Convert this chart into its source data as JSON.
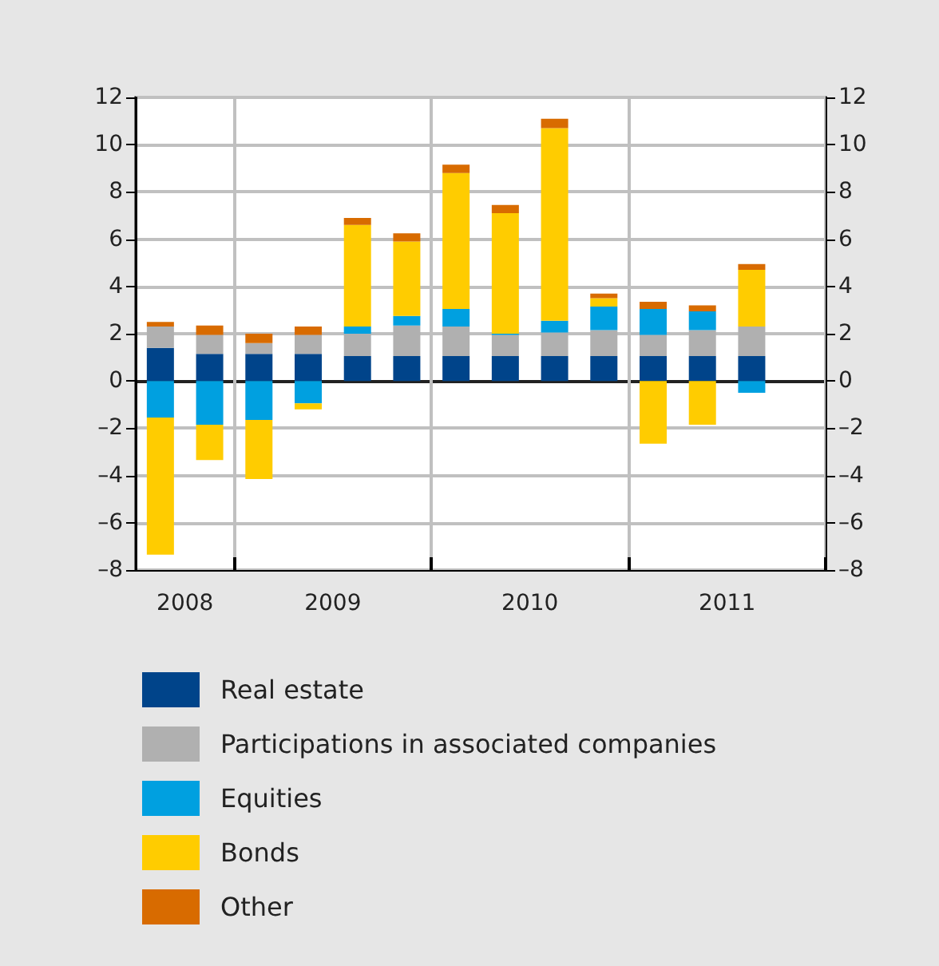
{
  "chart_data": {
    "type": "bar",
    "stacked": true,
    "categories": [
      "2008",
      null,
      null,
      "2009",
      null,
      null,
      null,
      "2010",
      null,
      null,
      null,
      "2011",
      null,
      null
    ],
    "ylim": [
      -8,
      12
    ],
    "yticks": [
      {
        "value": -8,
        "label": "–8"
      },
      {
        "value": -6,
        "label": "–6"
      },
      {
        "value": -4,
        "label": "–4"
      },
      {
        "value": -2,
        "label": "–2"
      },
      0,
      2,
      4,
      6,
      8,
      10,
      12
    ],
    "y2lim": [
      -8,
      12
    ],
    "y2ticks": [
      {
        "value": -8,
        "label": "–8"
      },
      {
        "value": -6,
        "label": "–6"
      },
      {
        "value": -4,
        "label": "–4"
      },
      {
        "value": -2,
        "label": "–2"
      },
      0,
      2,
      4,
      6,
      8,
      10,
      12
    ],
    "grid": true,
    "legend": "bottom",
    "series": [
      {
        "name": "Real estate",
        "color": "#00448a",
        "values": [
          1.4,
          1.15,
          1.15,
          1.15,
          1.05,
          1.05,
          1.05,
          1.05,
          1.05,
          1.05,
          1.05,
          1.05,
          1.05,
          null
        ]
      },
      {
        "name": "Participations in associated companies",
        "color": "#b0b0b0",
        "values": [
          0.9,
          0.8,
          0.45,
          0.8,
          0.95,
          1.3,
          1.25,
          0.9,
          1.0,
          1.1,
          0.9,
          1.1,
          1.25,
          null
        ]
      },
      {
        "name": "Equities",
        "color": "#00a0e0",
        "values": [
          -1.55,
          -1.85,
          -1.65,
          -0.95,
          0.3,
          0.4,
          0.75,
          0.05,
          0.5,
          1.0,
          1.1,
          0.8,
          -0.5,
          null
        ]
      },
      {
        "name": "Bonds",
        "color": "#ffcc00",
        "values": [
          -5.8,
          -1.5,
          -2.5,
          -0.25,
          4.3,
          3.15,
          5.75,
          5.1,
          8.15,
          0.35,
          -2.65,
          -1.85,
          2.4,
          null
        ]
      },
      {
        "name": "Other",
        "color": "#d86b00",
        "values": [
          0.2,
          0.4,
          0.4,
          0.35,
          0.3,
          0.35,
          0.35,
          0.35,
          0.4,
          0.2,
          0.3,
          0.25,
          0.25,
          null
        ]
      }
    ]
  }
}
